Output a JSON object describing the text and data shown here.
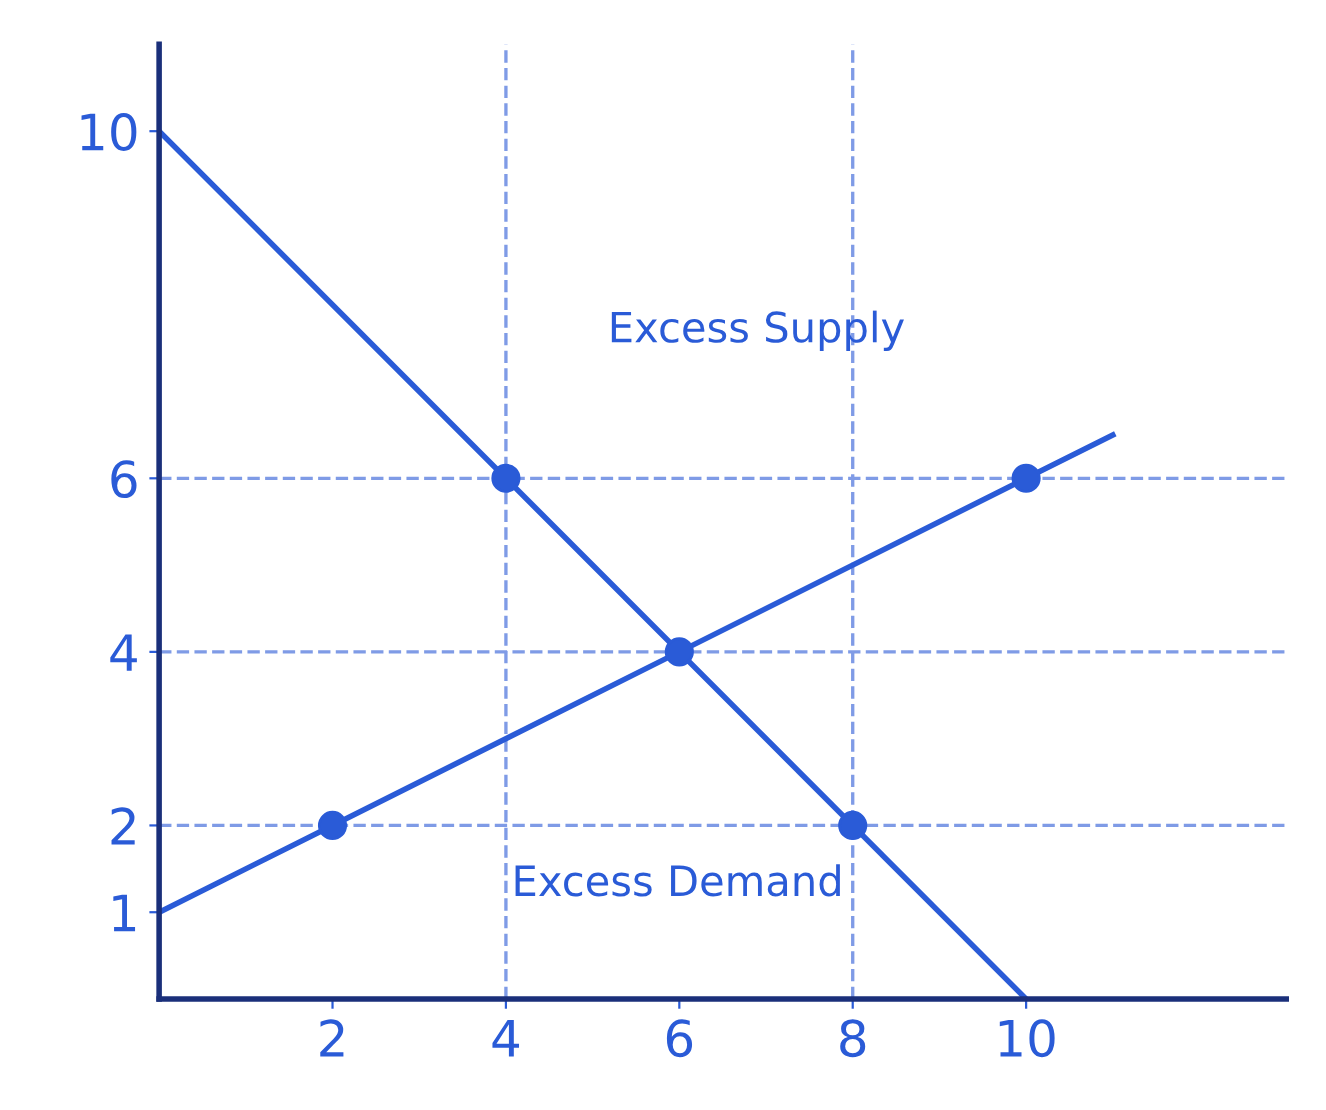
{
  "chart_data": {
    "type": "line",
    "series": [
      {
        "color": "#2a5bd7",
        "x": [
          0,
          10
        ],
        "values": [
          10,
          0
        ],
        "marker": "none"
      },
      {
        "color": "#2a5bd7",
        "x": [
          0,
          2,
          6,
          10,
          11
        ],
        "values": [
          1,
          2,
          4,
          6,
          6.5
        ],
        "marker": "none"
      },
      {
        "type": "scatter",
        "color": "#2a5bd7",
        "x": [
          4,
          10,
          6,
          2,
          8
        ],
        "values": [
          6,
          6,
          4,
          2,
          2
        ],
        "marker": "circle"
      }
    ],
    "xlim": [
      0,
      13
    ],
    "ylim": [
      0,
      11
    ],
    "xticks": [
      2,
      4,
      6,
      8,
      10
    ],
    "yticks": [
      1,
      2,
      4,
      6,
      10
    ],
    "ref_lines": [
      {
        "axis": "y",
        "value": 6,
        "color": "#7f9be6",
        "line_style": "dashed"
      },
      {
        "axis": "y",
        "value": 4,
        "color": "#7f9be6",
        "line_style": "dashed"
      },
      {
        "axis": "y",
        "value": 2,
        "color": "#7f9be6",
        "line_style": "dashed"
      },
      {
        "axis": "x",
        "value": 4,
        "color": "#7f9be6",
        "line_style": "dashed"
      },
      {
        "axis": "x",
        "value": 8,
        "color": "#7f9be6",
        "line_style": "dashed"
      }
    ],
    "annotations": [
      "Excess Supply",
      "Excess Demand"
    ],
    "grid": false
  }
}
